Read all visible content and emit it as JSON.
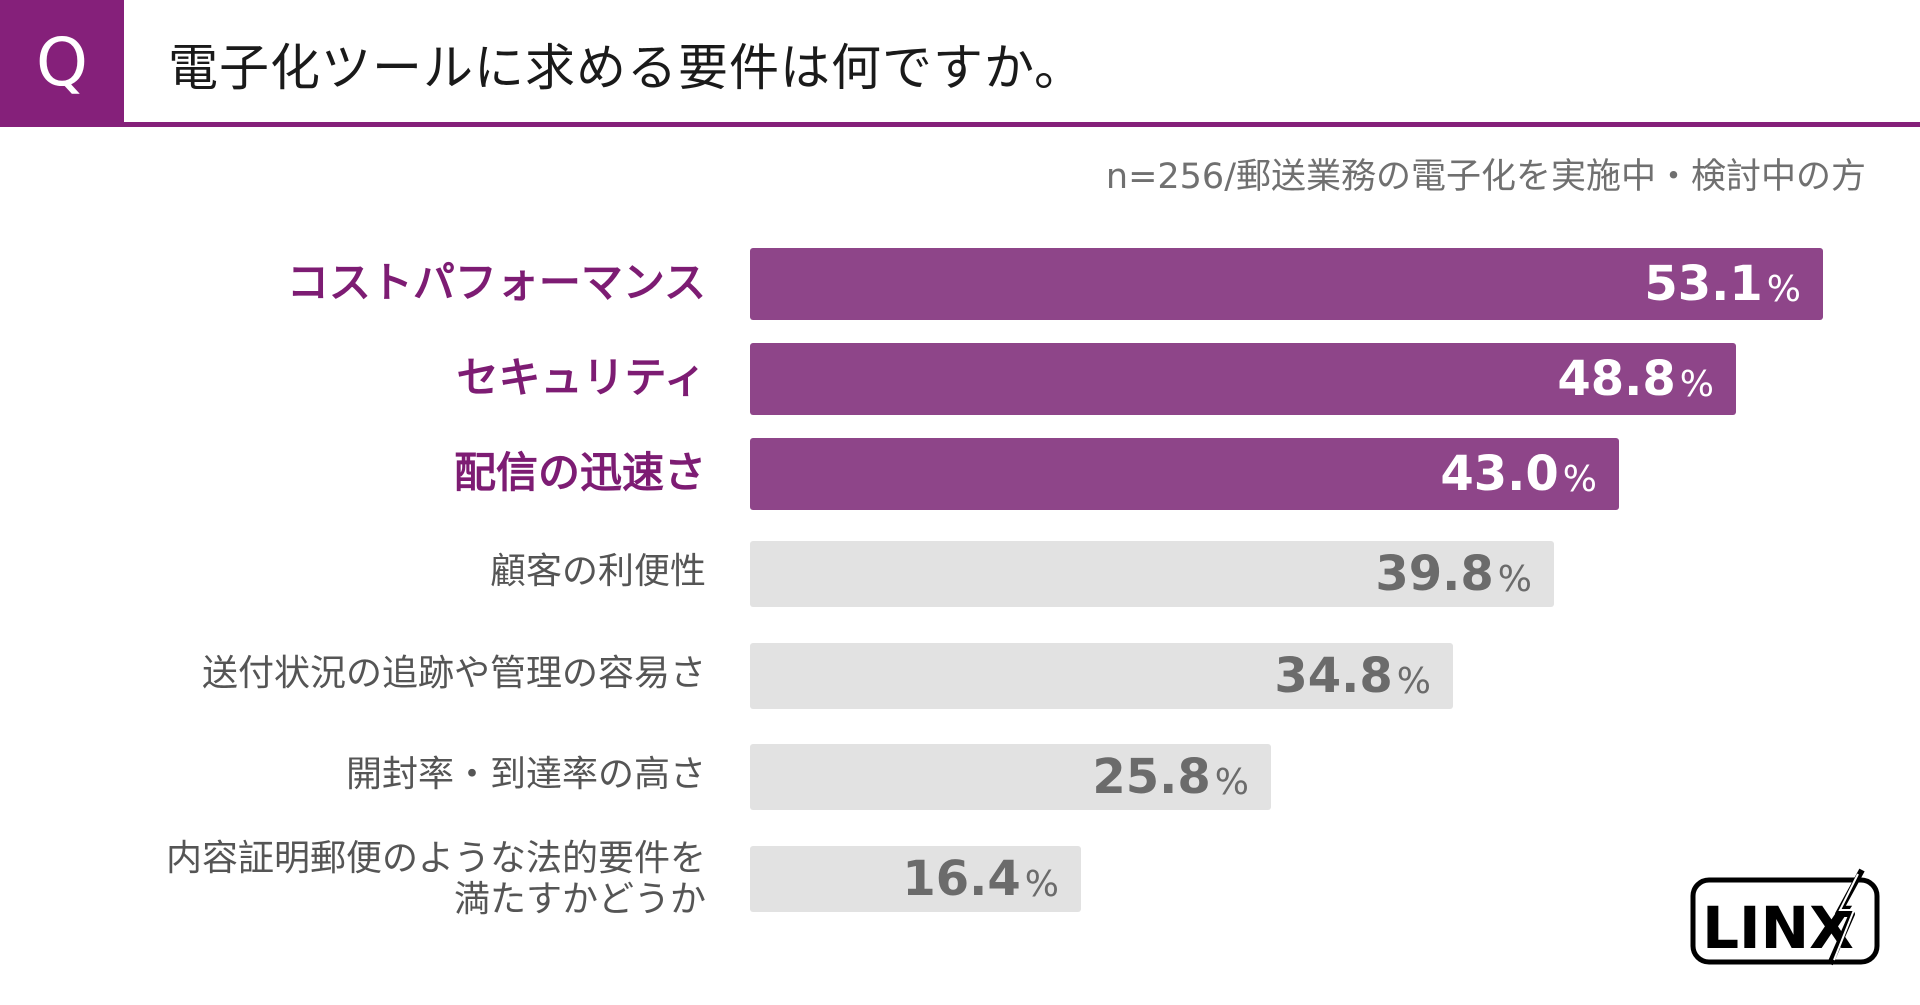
{
  "header": {
    "q_label": "Q",
    "question": "電子化ツールに求める要件は何ですか。",
    "note": "n=256/郵送業務の電子化を実施中・検討中の方"
  },
  "logo": {
    "text": "LINX"
  },
  "colors": {
    "accent": "#85207a",
    "top_bar": "#8e4589",
    "rest_bar": "#e2e2e2"
  },
  "chart_data": {
    "type": "bar",
    "orientation": "horizontal",
    "unit": "%",
    "categories": [
      "コストパフォーマンス",
      "セキュリティ",
      "配信の迅速さ",
      "顧客の利便性",
      "送付状況の追跡や管理の容易さ",
      "開封率・到達率の高さ",
      "内容証明郵便のような法的要件を満たすかどうか"
    ],
    "category_lines": [
      [
        "コストパフォーマンス"
      ],
      [
        "セキュリティ"
      ],
      [
        "配信の迅速さ"
      ],
      [
        "顧客の利便性"
      ],
      [
        "送付状況の追跡や管理の容易さ"
      ],
      [
        "開封率・到達率の高さ"
      ],
      [
        "内容証明郵便のような法的要件を",
        "満たすかどうか"
      ]
    ],
    "values": [
      53.1,
      48.8,
      43.0,
      39.8,
      34.8,
      25.8,
      16.4
    ],
    "value_labels": [
      "53.1",
      "48.8",
      "43.0",
      "39.8",
      "34.8",
      "25.8",
      "16.4"
    ],
    "highlighted_top": 3,
    "xlim": [
      0,
      60
    ],
    "grid": false,
    "legend": "none"
  }
}
